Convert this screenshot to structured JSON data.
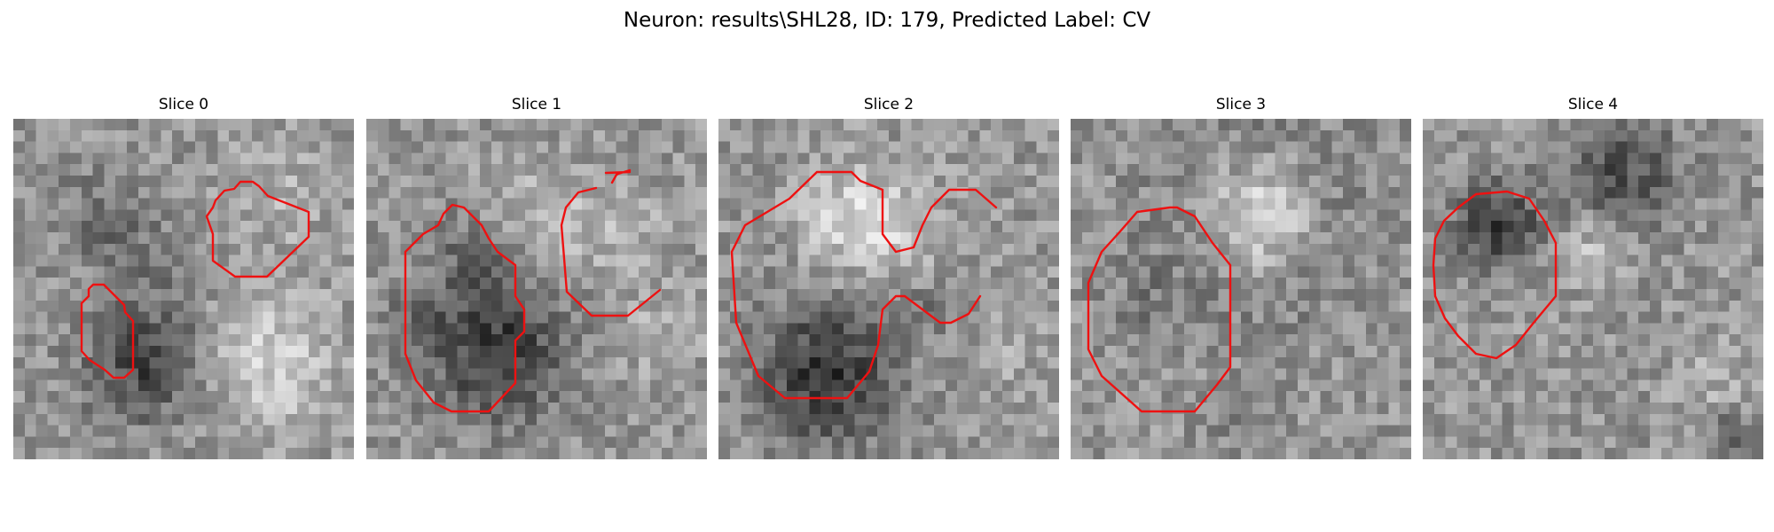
{
  "figure": {
    "title": "Neuron: results\\SHL28, ID: 179, Predicted Label: CV"
  },
  "colors": {
    "contour": "#ee1111",
    "background": "#ffffff"
  },
  "panels": [
    {
      "title": "Slice 0"
    },
    {
      "title": "Slice 1"
    },
    {
      "title": "Slice 2"
    },
    {
      "title": "Slice 3"
    },
    {
      "title": "Slice 4"
    }
  ]
}
